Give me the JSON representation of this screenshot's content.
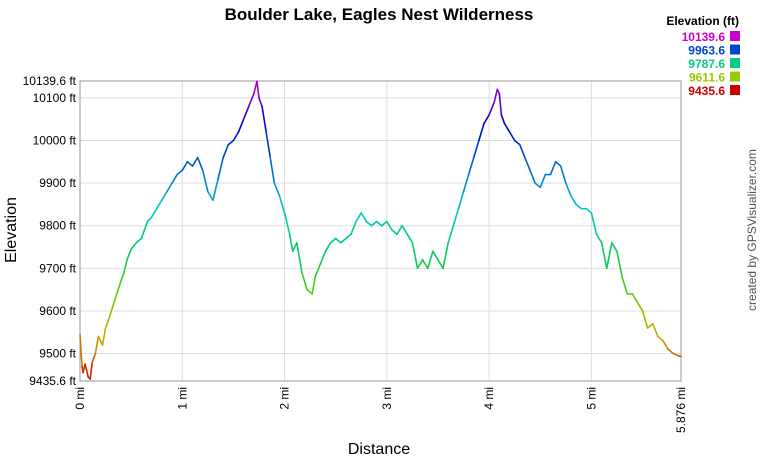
{
  "chart_data": {
    "type": "line",
    "title": "Boulder Lake, Eagles Nest Wilderness",
    "xlabel": "Distance",
    "ylabel": "Elevation",
    "xlim": [
      0,
      5.876
    ],
    "ylim": [
      9435.6,
      10139.6
    ],
    "grid": true,
    "legend_placement": "top-right",
    "y_ticks": [
      {
        "value": 9435.6,
        "label": "9435.6 ft"
      },
      {
        "value": 9500,
        "label": "9500 ft"
      },
      {
        "value": 9600,
        "label": "9600 ft"
      },
      {
        "value": 9700,
        "label": "9700 ft"
      },
      {
        "value": 9800,
        "label": "9800 ft"
      },
      {
        "value": 9900,
        "label": "9900 ft"
      },
      {
        "value": 10000,
        "label": "10000 ft"
      },
      {
        "value": 10100,
        "label": "10100 ft"
      },
      {
        "value": 10139.6,
        "label": "10139.6 ft"
      }
    ],
    "x_ticks": [
      {
        "value": 0,
        "label": "0 mi"
      },
      {
        "value": 1,
        "label": "1 mi"
      },
      {
        "value": 2,
        "label": "2 mi"
      },
      {
        "value": 3,
        "label": "3 mi"
      },
      {
        "value": 4,
        "label": "4 mi"
      },
      {
        "value": 5,
        "label": "5 mi"
      },
      {
        "value": 5.876,
        "label": "5.876 mi"
      }
    ],
    "legend": {
      "title": "Elevation (ft)",
      "entries": [
        {
          "label": "10139.6",
          "color": "#cc00cc"
        },
        {
          "label": "9963.6",
          "color": "#0044cc"
        },
        {
          "label": "9787.6",
          "color": "#00cc88"
        },
        {
          "label": "9611.6",
          "color": "#99cc00"
        },
        {
          "label": "9435.6",
          "color": "#cc0000"
        }
      ]
    },
    "color_scale": [
      "#cc0000",
      "#ccaa00",
      "#66cc00",
      "#00cc66",
      "#00cccc",
      "#0066cc",
      "#0000cc",
      "#cc00cc"
    ],
    "credit": "created by GPSVisualizer.com",
    "series": [
      {
        "x": [
          0,
          0.02,
          0.03,
          0.05,
          0.08,
          0.1,
          0.12,
          0.15,
          0.18,
          0.22,
          0.25,
          0.28,
          0.32,
          0.36,
          0.4,
          0.43,
          0.46,
          0.5,
          0.55,
          0.6,
          0.63,
          0.66,
          0.7,
          0.75,
          0.8,
          0.85,
          0.9,
          0.95,
          1.0,
          1.05,
          1.1,
          1.15,
          1.2,
          1.25,
          1.3,
          1.35,
          1.4,
          1.45,
          1.5,
          1.55,
          1.6,
          1.65,
          1.7,
          1.73,
          1.75,
          1.78,
          1.82,
          1.86,
          1.9,
          1.95,
          2.0,
          2.05,
          2.08,
          2.12,
          2.17,
          2.22,
          2.27,
          2.3,
          2.35,
          2.4,
          2.45,
          2.5,
          2.55,
          2.6,
          2.65,
          2.7,
          2.75,
          2.8,
          2.85,
          2.9,
          2.95,
          3.0,
          3.05,
          3.1,
          3.15,
          3.2,
          3.25,
          3.3,
          3.35,
          3.4,
          3.45,
          3.5,
          3.55,
          3.6,
          3.65,
          3.7,
          3.75,
          3.8,
          3.85,
          3.9,
          3.95,
          4.0,
          4.05,
          4.08,
          4.1,
          4.12,
          4.15,
          4.2,
          4.25,
          4.3,
          4.35,
          4.4,
          4.45,
          4.5,
          4.55,
          4.6,
          4.65,
          4.7,
          4.75,
          4.8,
          4.85,
          4.9,
          4.95,
          5.0,
          5.05,
          5.1,
          5.15,
          5.2,
          5.25,
          5.3,
          5.35,
          5.4,
          5.45,
          5.5,
          5.55,
          5.6,
          5.65,
          5.7,
          5.75,
          5.8,
          5.85,
          5.876
        ],
        "y": [
          9545,
          9470,
          9455,
          9475,
          9445,
          9440,
          9480,
          9500,
          9540,
          9520,
          9560,
          9580,
          9610,
          9640,
          9670,
          9690,
          9720,
          9745,
          9760,
          9770,
          9790,
          9810,
          9820,
          9840,
          9860,
          9880,
          9900,
          9920,
          9930,
          9950,
          9940,
          9960,
          9930,
          9880,
          9860,
          9910,
          9960,
          9990,
          10000,
          10020,
          10050,
          10080,
          10110,
          10139,
          10100,
          10080,
          10020,
          9960,
          9900,
          9870,
          9830,
          9780,
          9740,
          9760,
          9690,
          9650,
          9640,
          9680,
          9710,
          9740,
          9760,
          9770,
          9760,
          9770,
          9780,
          9810,
          9830,
          9810,
          9800,
          9810,
          9800,
          9810,
          9790,
          9780,
          9800,
          9780,
          9760,
          9700,
          9720,
          9700,
          9740,
          9720,
          9700,
          9760,
          9800,
          9840,
          9880,
          9920,
          9960,
          10000,
          10040,
          10060,
          10090,
          10120,
          10110,
          10060,
          10040,
          10020,
          10000,
          9990,
          9960,
          9930,
          9900,
          9890,
          9920,
          9920,
          9950,
          9940,
          9900,
          9870,
          9850,
          9840,
          9840,
          9830,
          9780,
          9760,
          9700,
          9760,
          9740,
          9680,
          9640,
          9640,
          9620,
          9600,
          9560,
          9570,
          9540,
          9530,
          9510,
          9500,
          9495,
          9493
        ]
      }
    ]
  }
}
